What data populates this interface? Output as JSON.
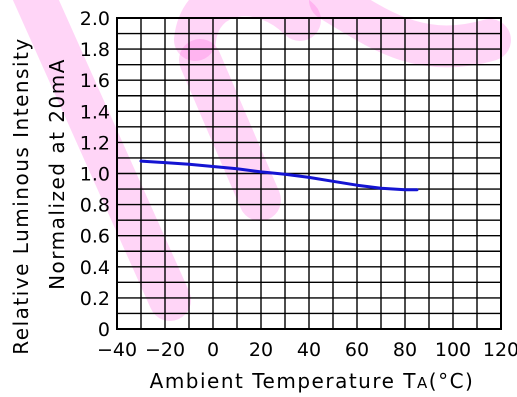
{
  "chart_data": {
    "type": "line",
    "xlabel_main": "Ambient Temperature T",
    "xlabel_sub": "A",
    "xlabel_unit": "(°C)",
    "ylabel_line1": "Relative Luminous Intensity",
    "ylabel_line2": "Normalized at 20mA",
    "xlim": [
      -40,
      120
    ],
    "ylim": [
      0,
      2.0
    ],
    "x_ticks": [
      "−40",
      "−20",
      "0",
      "20",
      "40",
      "60",
      "80",
      "100",
      "120"
    ],
    "y_ticks": [
      "0",
      "0.2",
      "0.4",
      "0.6",
      "0.8",
      "1.0",
      "1.2",
      "1.4",
      "1.6",
      "1.8",
      "2.0"
    ],
    "grid": true,
    "series": [
      {
        "color": "#1414d2",
        "x": [
          -30,
          -20,
          -10,
          0,
          10,
          20,
          30,
          40,
          50,
          60,
          70,
          80,
          85
        ],
        "y": [
          1.08,
          1.07,
          1.06,
          1.045,
          1.03,
          1.01,
          0.995,
          0.975,
          0.95,
          0.925,
          0.905,
          0.895,
          0.895
        ]
      }
    ]
  },
  "watermark": {
    "color": "#ff3fd9"
  }
}
